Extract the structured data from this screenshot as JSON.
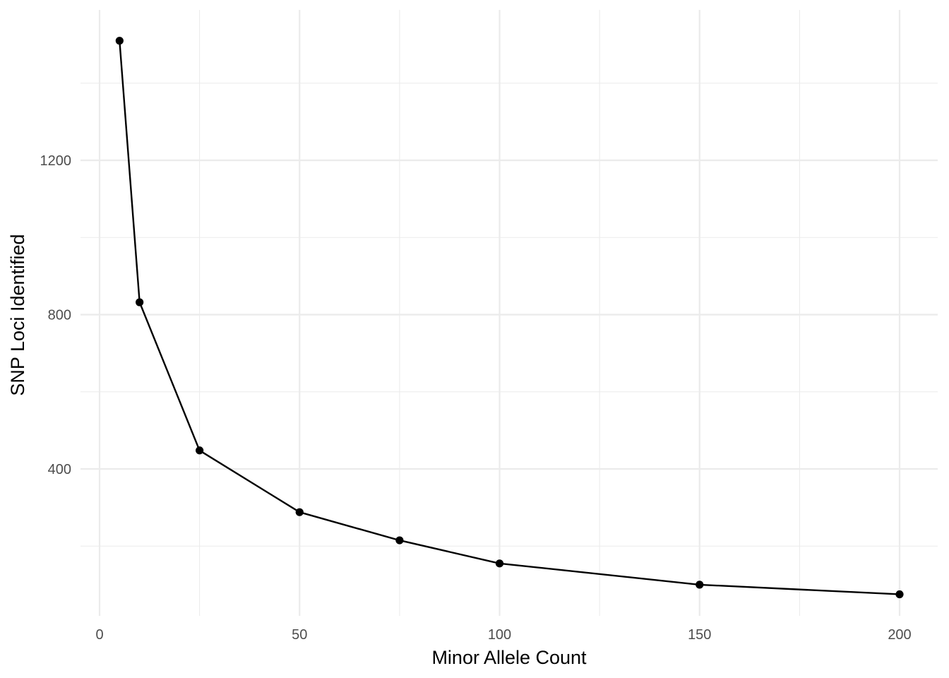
{
  "chart_data": {
    "type": "line",
    "title": "",
    "xlabel": "Minor Allele Count",
    "ylabel": "SNP Loci Identified",
    "xlim": [
      0,
      200
    ],
    "ylim": [
      0,
      1500
    ],
    "x_ticks": [
      "0",
      "50",
      "100",
      "150",
      "200"
    ],
    "y_ticks": [
      "400",
      "800",
      "1200"
    ],
    "grid": true,
    "legend": "none",
    "series": [
      {
        "color": "#000000",
        "x": [
          5,
          10,
          25,
          50,
          75,
          100,
          150,
          200
        ],
        "y": [
          1510,
          832,
          448,
          288,
          215,
          155,
          100,
          75
        ]
      }
    ]
  }
}
